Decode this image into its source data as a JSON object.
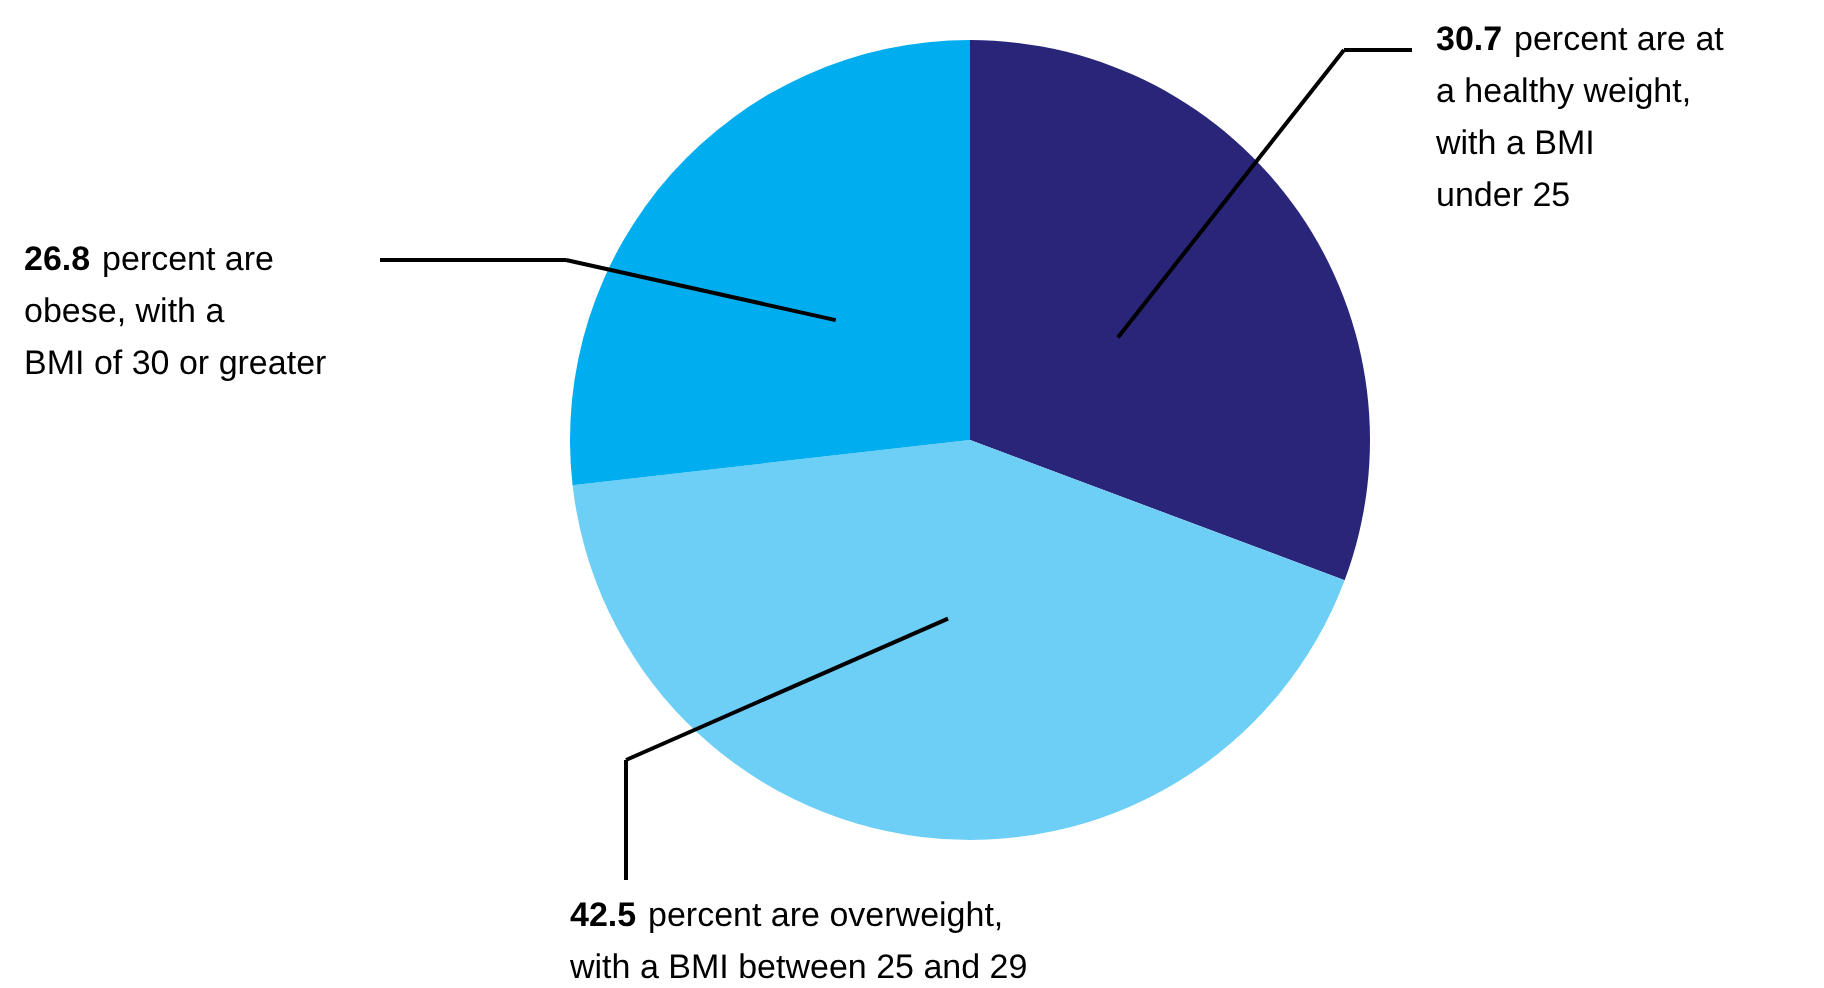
{
  "chart_data": {
    "type": "pie",
    "categories": [
      "percent are at\na healthy weight,\nwith a BMI\nunder 25",
      "percent are overweight,\nwith a BMI between 25 and 29",
      "percent are\nobese, with a\nBMI of 30 or greater"
    ],
    "values": [
      30.7,
      42.5,
      26.8
    ],
    "colors": [
      "#29267a",
      "#6dcff6",
      "#00aeef"
    ],
    "data_labels": true
  }
}
